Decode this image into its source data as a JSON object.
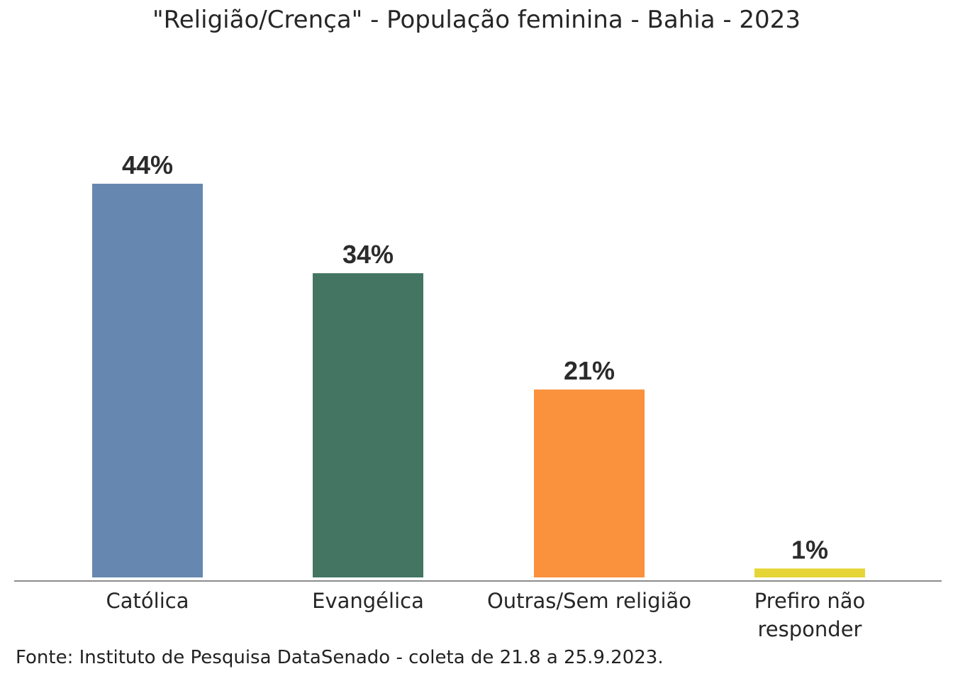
{
  "chart_data": {
    "type": "bar",
    "title": "\"Religião/Crença\" - População feminina - Bahia - 2023",
    "categories": [
      "Católica",
      "Evangélica",
      "Outras/Sem religião",
      "Prefiro não responder"
    ],
    "values": [
      44,
      34,
      21,
      1
    ],
    "value_labels": [
      "44%",
      "34%",
      "21%",
      "1%"
    ],
    "colors": [
      "#6688B0",
      "#437562",
      "#FA913C",
      "#E5D536"
    ],
    "unit": "%",
    "ylim": [
      0,
      50
    ],
    "grid": false,
    "legend": "none",
    "xlabel": "",
    "ylabel": ""
  },
  "source": "Fonte: Instituto de Pesquisa DataSenado - coleta de 21.8 a 25.9.2023."
}
